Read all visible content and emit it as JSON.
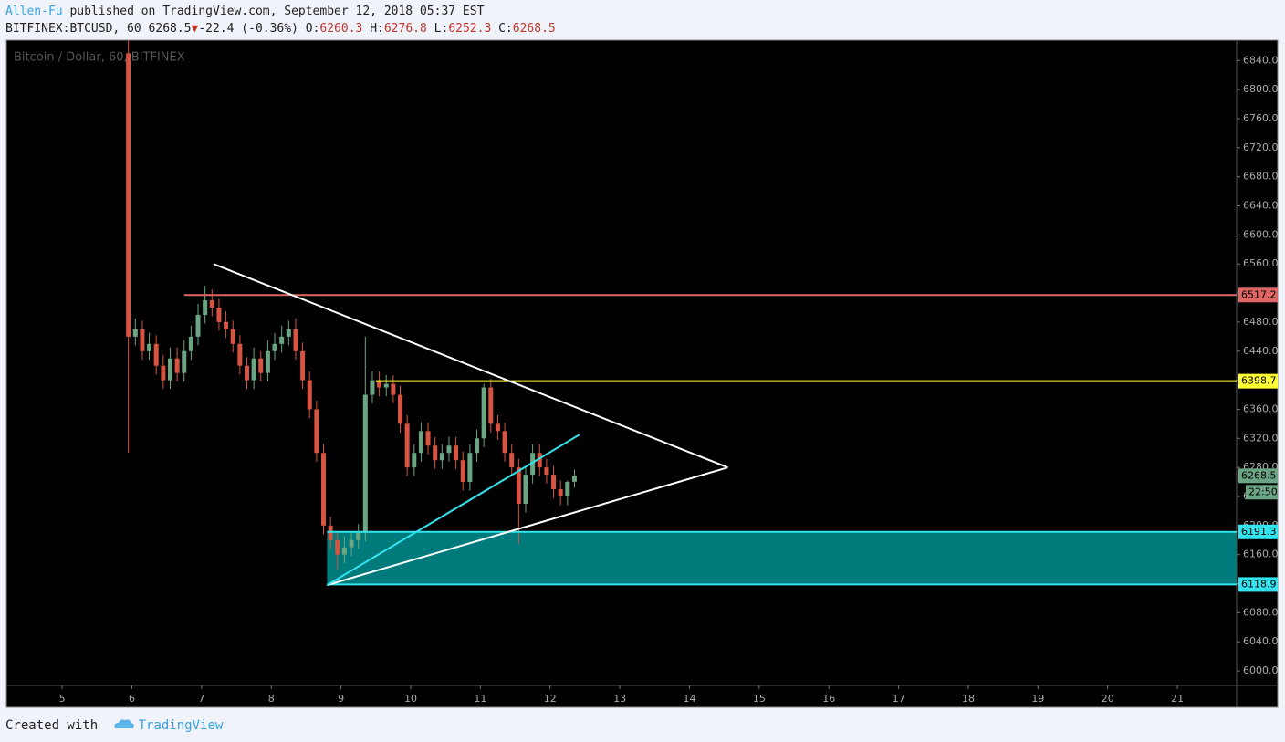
{
  "header": {
    "author": "Allen-Fu",
    "published": "published on TradingView.com, September 12, 2018 05:37 EST",
    "symbol": "BITFINEX:BTCUSD, 60",
    "last": "6268.5",
    "arrow": "▼",
    "change": "-22.4 (-0.36%)",
    "ohlc": [
      {
        "label": "O:",
        "value": "6260.3"
      },
      {
        "label": "H:",
        "value": "6276.8"
      },
      {
        "label": "L:",
        "value": "6252.3"
      },
      {
        "label": "C:",
        "value": "6268.5"
      }
    ]
  },
  "footer": {
    "created": "Created with",
    "brand": "TradingView"
  },
  "chart_data": {
    "type": "candlestick",
    "title": "Bitcoin / Dollar, 60, BITFINEX",
    "up_color": "#6ba583",
    "down_color": "#d75442",
    "xlim": [
      4.2,
      21.85
    ],
    "xticks": [
      5,
      6,
      7,
      8,
      9,
      10,
      11,
      12,
      13,
      14,
      15,
      16,
      17,
      18,
      19,
      20,
      21
    ],
    "ylim": [
      5980,
      6868
    ],
    "yticks": [
      {
        "value": 6000,
        "label": "6000.0"
      },
      {
        "value": 6040,
        "label": "6040.0"
      },
      {
        "value": 6080,
        "label": "6080.0"
      },
      {
        "value": 6120,
        "label": "6120.0"
      },
      {
        "value": 6160,
        "label": "6160.0"
      },
      {
        "value": 6200,
        "label": "6200.0"
      },
      {
        "value": 6240,
        "label": "6240.0"
      },
      {
        "value": 6280,
        "label": "6280.0"
      },
      {
        "value": 6320,
        "label": "6320.0"
      },
      {
        "value": 6360,
        "label": "6360.0"
      },
      {
        "value": 6400,
        "label": "6400.0"
      },
      {
        "value": 6440,
        "label": "6440.0"
      },
      {
        "value": 6480,
        "label": "6480.0"
      },
      {
        "value": 6520,
        "label": "6520.0"
      },
      {
        "value": 6560,
        "label": "6560.0"
      },
      {
        "value": 6600,
        "label": "6600.0"
      },
      {
        "value": 6640,
        "label": "6640.0"
      },
      {
        "value": 6680,
        "label": "6680.0"
      },
      {
        "value": 6720,
        "label": "6720.0"
      },
      {
        "value": 6760,
        "label": "6760.0"
      },
      {
        "value": 6800,
        "label": "6800.0"
      },
      {
        "value": 6840,
        "label": "6840.0"
      }
    ],
    "x": [
      5.95,
      6.05,
      6.15,
      6.25,
      6.35,
      6.45,
      6.55,
      6.65,
      6.75,
      6.85,
      6.95,
      7.05,
      7.15,
      7.25,
      7.35,
      7.45,
      7.55,
      7.65,
      7.75,
      7.85,
      7.95,
      8.05,
      8.15,
      8.25,
      8.35,
      8.45,
      8.55,
      8.65,
      8.75,
      8.85,
      8.95,
      9.05,
      9.15,
      9.25,
      9.35,
      9.45,
      9.55,
      9.65,
      9.75,
      9.85,
      9.95,
      10.05,
      10.15,
      10.25,
      10.35,
      10.45,
      10.55,
      10.65,
      10.75,
      10.85,
      10.95,
      11.05,
      11.15,
      11.25,
      11.35,
      11.45,
      11.55,
      11.65,
      11.75,
      11.85,
      11.95,
      12.05,
      12.15,
      12.25,
      12.35
    ],
    "open": [
      6850,
      6460,
      6470,
      6440,
      6450,
      6420,
      6400,
      6430,
      6410,
      6440,
      6460,
      6490,
      6510,
      6500,
      6480,
      6470,
      6450,
      6420,
      6400,
      6430,
      6410,
      6440,
      6450,
      6460,
      6470,
      6440,
      6400,
      6360,
      6300,
      6200,
      6180,
      6160,
      6170,
      6180,
      6190,
      6380,
      6400,
      6390,
      6395,
      6380,
      6340,
      6280,
      6300,
      6330,
      6310,
      6290,
      6300,
      6310,
      6290,
      6260,
      6300,
      6320,
      6390,
      6340,
      6330,
      6300,
      6280,
      6230,
      6270,
      6300,
      6280,
      6270,
      6250,
      6240,
      6260.3
    ],
    "high": [
      6870,
      6485,
      6482,
      6465,
      6462,
      6435,
      6445,
      6445,
      6455,
      6475,
      6505,
      6530,
      6525,
      6512,
      6495,
      6482,
      6462,
      6432,
      6445,
      6440,
      6455,
      6465,
      6475,
      6482,
      6485,
      6452,
      6412,
      6372,
      6312,
      6212,
      6192,
      6185,
      6192,
      6202,
      6460,
      6412,
      6412,
      6407,
      6407,
      6392,
      6352,
      6312,
      6342,
      6342,
      6322,
      6312,
      6322,
      6322,
      6302,
      6312,
      6332,
      6395,
      6402,
      6352,
      6342,
      6312,
      6292,
      6282,
      6312,
      6312,
      6292,
      6282,
      6262,
      6262,
      6276.8
    ],
    "low": [
      6300,
      6448,
      6428,
      6428,
      6408,
      6388,
      6388,
      6398,
      6398,
      6428,
      6448,
      6478,
      6488,
      6468,
      6458,
      6438,
      6408,
      6388,
      6388,
      6398,
      6398,
      6428,
      6438,
      6448,
      6428,
      6388,
      6348,
      6288,
      6188,
      6168,
      6140,
      6148,
      6158,
      6168,
      6178,
      6368,
      6378,
      6378,
      6368,
      6328,
      6268,
      6268,
      6288,
      6298,
      6278,
      6278,
      6288,
      6278,
      6248,
      6248,
      6288,
      6308,
      6328,
      6318,
      6288,
      6268,
      6175,
      6218,
      6258,
      6268,
      6258,
      6238,
      6228,
      6228,
      6252.3
    ],
    "close": [
      6460,
      6470,
      6440,
      6450,
      6420,
      6400,
      6430,
      6410,
      6440,
      6460,
      6490,
      6510,
      6500,
      6480,
      6470,
      6450,
      6420,
      6400,
      6430,
      6410,
      6440,
      6450,
      6460,
      6470,
      6440,
      6400,
      6360,
      6300,
      6200,
      6180,
      6160,
      6170,
      6180,
      6190,
      6380,
      6400,
      6390,
      6395,
      6380,
      6340,
      6280,
      6300,
      6330,
      6310,
      6290,
      6300,
      6310,
      6290,
      6260,
      6300,
      6320,
      6390,
      6340,
      6330,
      6300,
      6280,
      6230,
      6270,
      6300,
      6280,
      6270,
      6250,
      6240,
      6260,
      6268.5
    ],
    "levels": [
      {
        "value": 6517.2,
        "color": "#e06666",
        "start": 6.75
      },
      {
        "value": 6398.7,
        "color": "#ffff33",
        "start": 9.5
      },
      {
        "value": 6191.3,
        "color": "#33e5f0",
        "start": 8.8
      },
      {
        "value": 6118.9,
        "color": "#33e5f0",
        "start": 8.8
      }
    ],
    "zone": {
      "low": 6118.9,
      "high": 6191.3,
      "color": "#007a7a",
      "start": 8.8
    },
    "trendlines": [
      {
        "color": "#ffffff",
        "x": [
          7.17,
          14.55
        ],
        "y": [
          6560,
          6280
        ]
      },
      {
        "color": "#ffffff",
        "x": [
          8.8,
          14.55
        ],
        "y": [
          6118,
          6280
        ]
      },
      {
        "color": "#33e5f0",
        "x": [
          8.8,
          12.42
        ],
        "y": [
          6118,
          6325
        ]
      }
    ],
    "last_price": 6268.5,
    "countdown": "22:50"
  }
}
